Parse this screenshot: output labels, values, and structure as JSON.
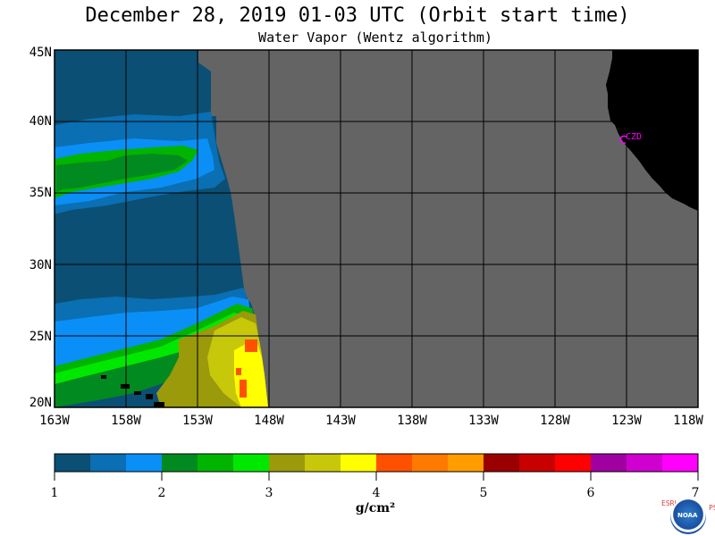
{
  "title": "December 28, 2019  01-03 UTC  (Orbit start time)",
  "subtitle": "Water Vapor (Wentz algorithm)",
  "map": {
    "lat_range": [
      20,
      45
    ],
    "lon_range": [
      -163,
      -118
    ],
    "lat_labels": [
      "45N",
      "40N",
      "35N",
      "30N",
      "25N",
      "20N"
    ],
    "lon_labels": [
      "163W",
      "158W",
      "153W",
      "148W",
      "143W",
      "138W",
      "133W",
      "128W",
      "123W",
      "118W"
    ],
    "station_label": "CZD",
    "colors": {
      "no_data_ocean": "#646464",
      "land": "#000000",
      "grid": "#000000",
      "station": "#ff00ff"
    }
  },
  "colorbar": {
    "ticks": [
      "1",
      "2",
      "3",
      "4",
      "5",
      "6",
      "7"
    ],
    "units": "g/cm²",
    "colors": [
      "#0b4f74",
      "#0a6fb3",
      "#0a8ff7",
      "#008a1f",
      "#00b400",
      "#00e800",
      "#9a9a0a",
      "#c8c80a",
      "#ffff00",
      "#ff5000",
      "#ff7a00",
      "#ff9c00",
      "#9a0000",
      "#c80000",
      "#ff0000",
      "#a000a0",
      "#d000d0",
      "#ff00ff"
    ]
  },
  "credits": {
    "left": "ESRL",
    "right": "PSD",
    "logo_text": "NOAA"
  }
}
